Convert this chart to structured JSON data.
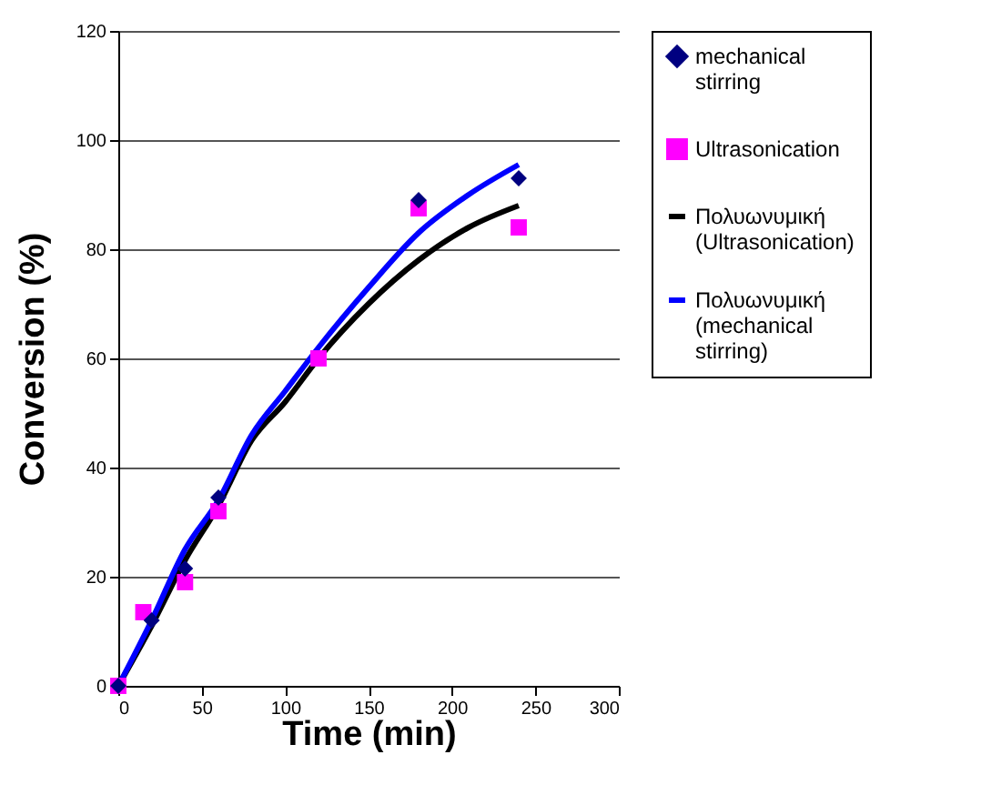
{
  "chart_data": {
    "type": "scatter",
    "xlabel": "Time (min)",
    "ylabel": "Conversion (%)",
    "xlim": [
      0,
      300
    ],
    "xticks": [
      0,
      50,
      100,
      150,
      200,
      250,
      300
    ],
    "ylim": [
      0,
      120
    ],
    "yticks": [
      0,
      20,
      40,
      60,
      80,
      100,
      120
    ],
    "grid": "y",
    "legend": "right",
    "series": [
      {
        "name": "mechanical stirring",
        "marker": "diamond",
        "color": "#000080",
        "x": [
          0,
          20,
          40,
          60,
          180,
          240
        ],
        "values": [
          0,
          12,
          21.5,
          34.5,
          89,
          93
        ]
      },
      {
        "name": "Ultrasonication",
        "marker": "square",
        "color": "#ff00ff",
        "x": [
          0,
          15,
          40,
          60,
          120,
          180,
          240
        ],
        "values": [
          0,
          13.5,
          19,
          32,
          60,
          87.5,
          84
        ]
      },
      {
        "name": "Πολυωνυμική (Ultrasonication)",
        "type": "line",
        "color": "#000000",
        "x": [
          0,
          20,
          40,
          60,
          80,
          100,
          120,
          150,
          180,
          210,
          240
        ],
        "values": [
          0,
          11,
          23,
          33,
          45,
          52,
          60,
          70,
          78,
          84,
          88
        ]
      },
      {
        "name": "Πολυωνυμική (mechanical stirring)",
        "type": "line",
        "color": "#0000ff",
        "x": [
          0,
          20,
          40,
          60,
          80,
          100,
          120,
          150,
          180,
          210,
          240
        ],
        "values": [
          0,
          12,
          25,
          34,
          46,
          54,
          62,
          73,
          83,
          90,
          95.5
        ]
      }
    ]
  }
}
